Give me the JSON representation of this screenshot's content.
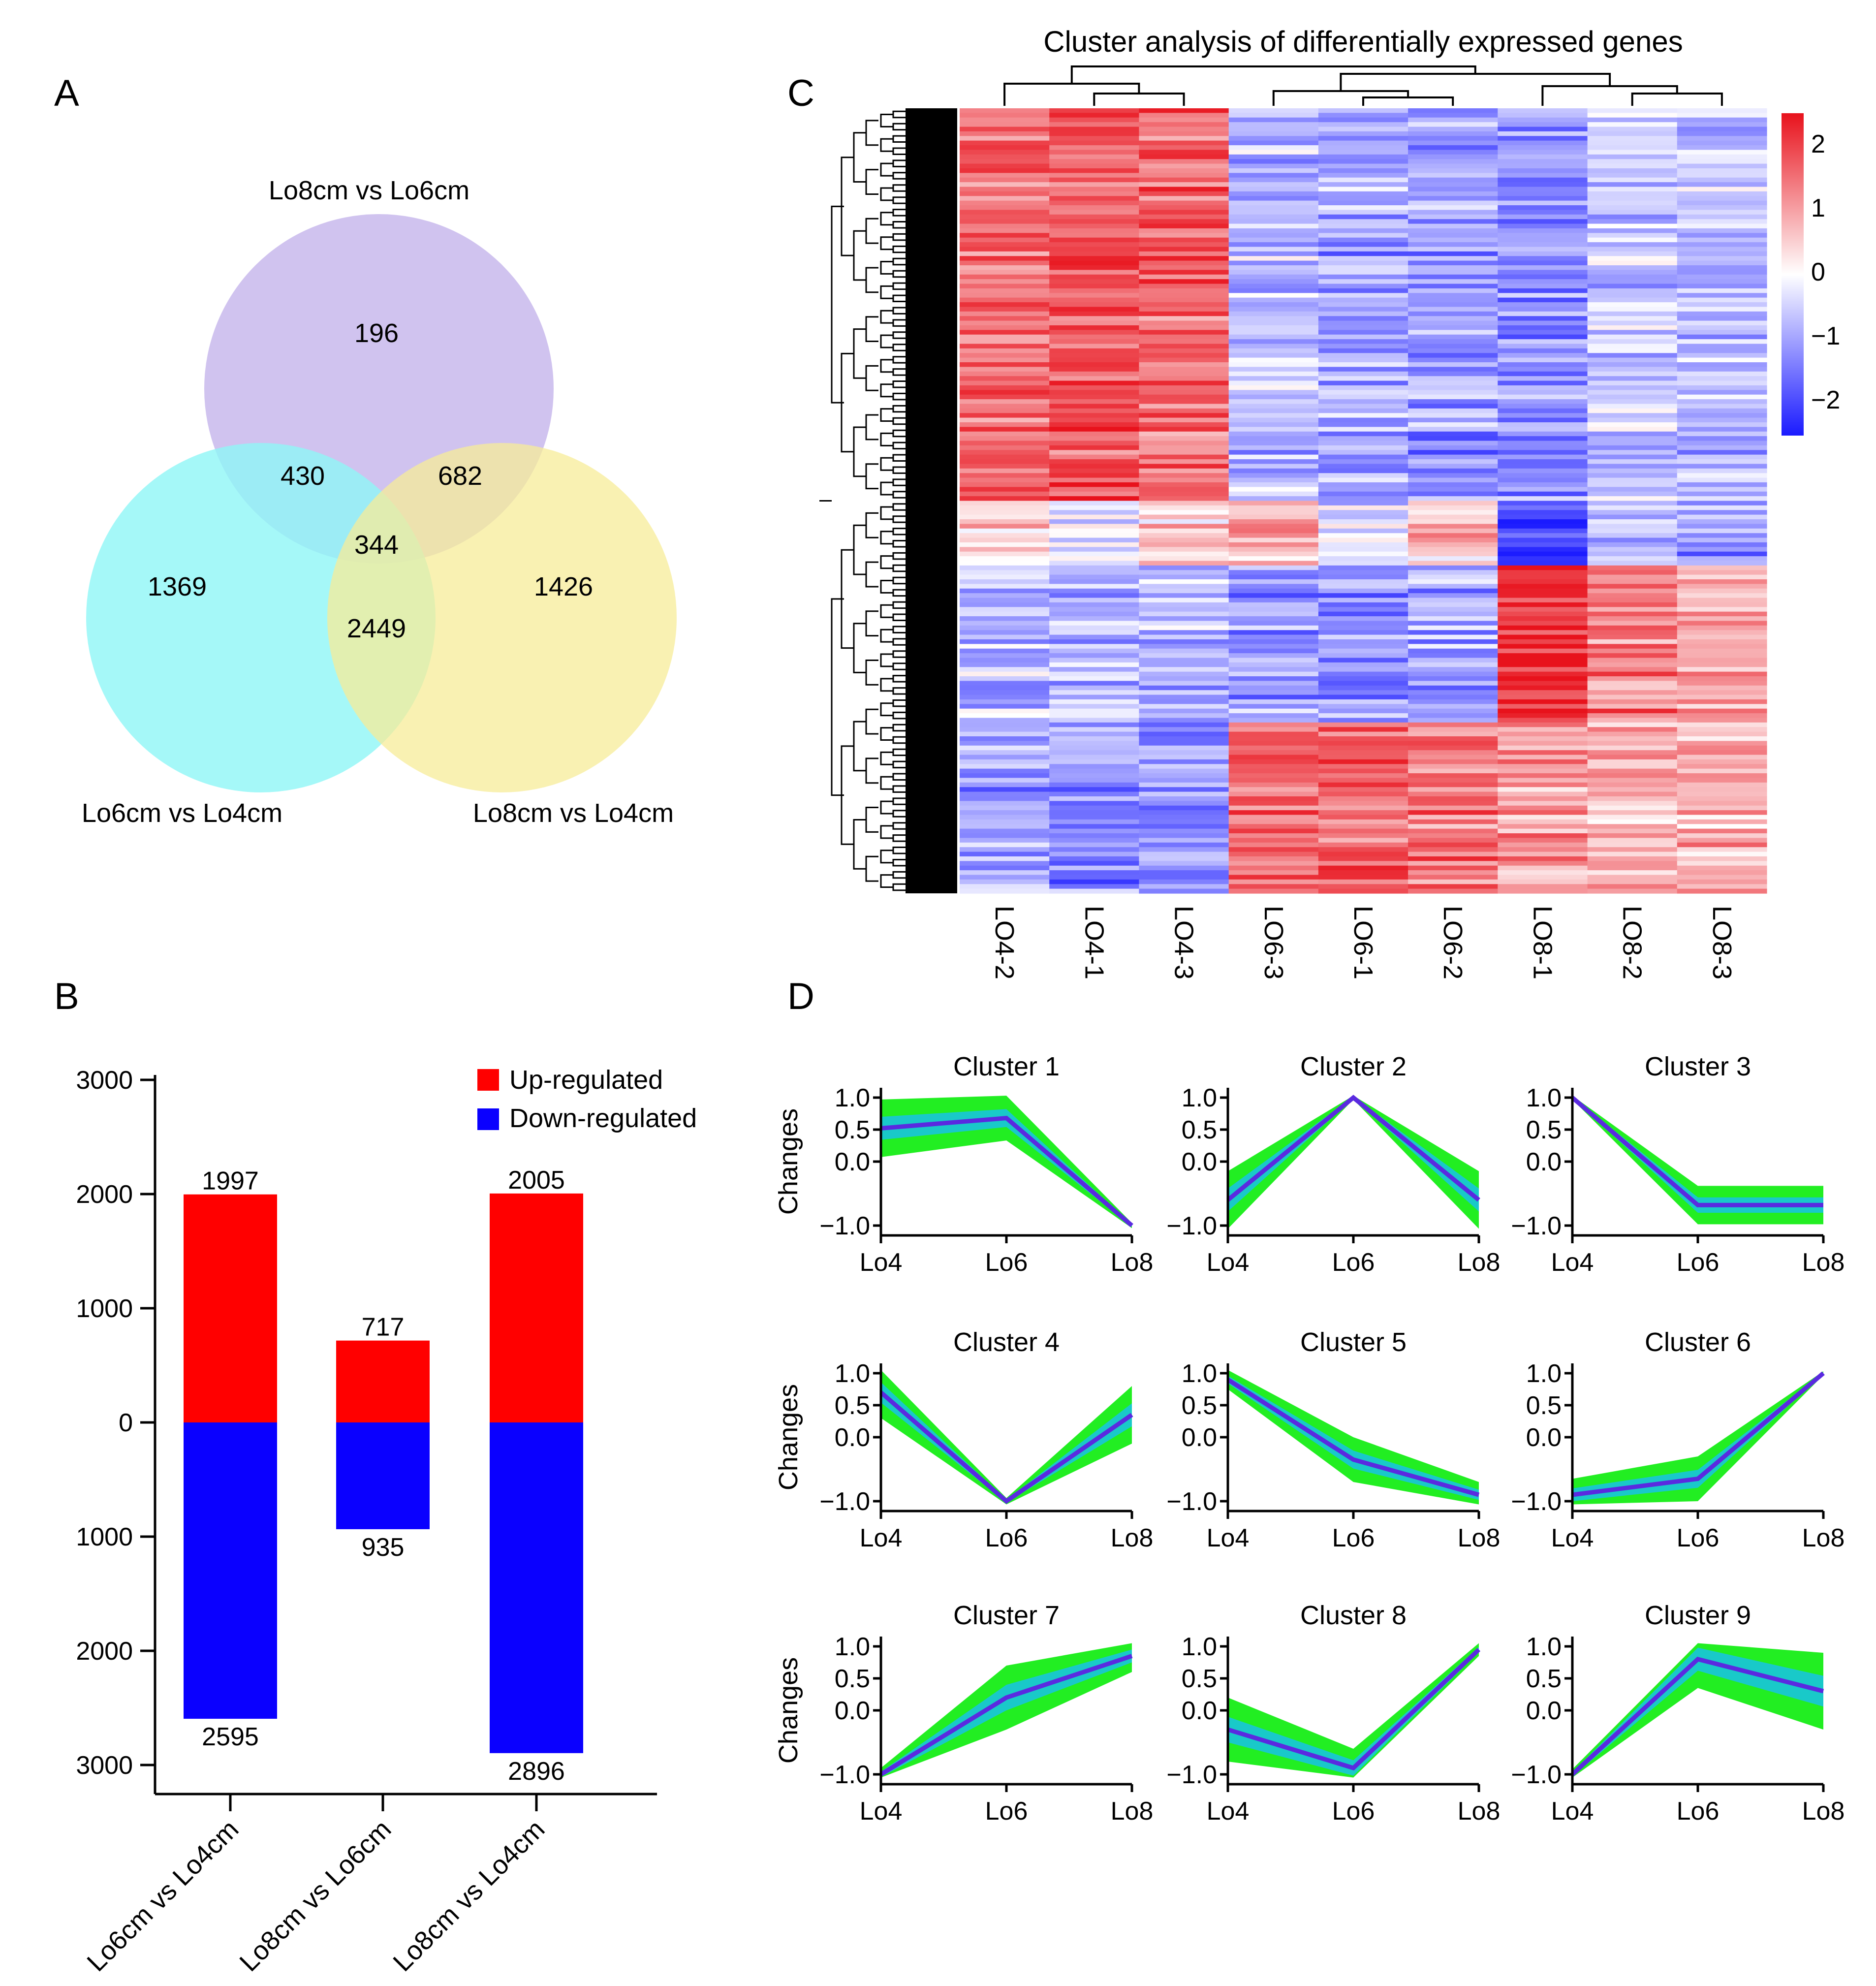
{
  "panels": {
    "a": "A",
    "b": "B",
    "c": "C",
    "d": "D"
  },
  "colors": {
    "venn_top": "#c8b8ec",
    "venn_left": "#8ef6f6",
    "venn_right": "#f7ec98",
    "up": "#ff0000",
    "down": "#0a00ff",
    "heat_high": "#e8121c",
    "heat_mid": "#ffffff",
    "heat_low": "#1a1aff",
    "cluster_band": "#22ee22",
    "cluster_mid": "#19c9c9",
    "cluster_center": "#5a2ae0"
  },
  "chart_data": [
    {
      "type": "venn",
      "sets": [
        "Lo8cm vs Lo6cm",
        "Lo6cm vs Lo4cm",
        "Lo8cm vs Lo4cm"
      ],
      "regions": {
        "only_top": "196",
        "only_left": "1369",
        "only_right": "1426",
        "top_left": "430",
        "top_right": "682",
        "left_right": "2449",
        "all": "344"
      }
    },
    {
      "type": "bar",
      "categories": [
        "Lo6cm vs Lo4cm",
        "Lo8cm vs Lo6cm",
        "Lo8cm vs Lo4cm"
      ],
      "series": [
        {
          "name": "Up-regulated",
          "values": [
            1997,
            717,
            2005
          ]
        },
        {
          "name": "Down-regulated",
          "values": [
            2595,
            935,
            2896
          ]
        }
      ],
      "ylim": [
        -3000,
        3000
      ],
      "yticks": [
        "3000",
        "2000",
        "1000",
        "0",
        "1000",
        "2000",
        "3000"
      ],
      "legend": "top-right",
      "stacked": "diverging"
    },
    {
      "type": "heatmap",
      "title": "Cluster analysis of differentially expressed genes",
      "columns": [
        "LO4-2",
        "LO4-1",
        "LO4-3",
        "LO6-3",
        "LO6-1",
        "LO6-2",
        "LO8-1",
        "LO8-2",
        "LO8-3"
      ],
      "colorbar_range": [
        -2,
        2
      ],
      "colorbar_ticks": [
        "2",
        "1",
        "0",
        "−1",
        "−2"
      ],
      "column_groups": [
        "LO4",
        "LO6",
        "LO8"
      ],
      "row_blocks": [
        {
          "rows": "upper",
          "pattern": [
            1.2,
            1.4,
            1.3,
            -0.6,
            -0.8,
            -0.9,
            -1.0,
            -0.5,
            -0.6
          ]
        },
        {
          "rows": "middle",
          "pattern": [
            0.3,
            -0.1,
            0.4,
            0.7,
            -0.3,
            0.5,
            -1.7,
            -0.6,
            -0.9
          ]
        },
        {
          "rows": "lower-a",
          "pattern": [
            -0.5,
            -0.6,
            -0.6,
            -0.9,
            -1.0,
            -0.8,
            1.6,
            1.1,
            0.8
          ]
        },
        {
          "rows": "lower-b",
          "pattern": [
            -0.8,
            -1.0,
            -0.9,
            1.2,
            1.3,
            1.1,
            0.8,
            0.6,
            0.7
          ]
        }
      ]
    },
    {
      "type": "line",
      "x": [
        "Lo4",
        "Lo6",
        "Lo8"
      ],
      "ylabel": "Changes",
      "ylim": [
        -1.0,
        1.0
      ],
      "yticks": [
        "1.0",
        "0.5",
        "0.0",
        "−1.0"
      ],
      "clusters": [
        {
          "name": "Cluster 1",
          "center": [
            0.52,
            0.68,
            -1.0
          ],
          "spread": [
            0.45,
            0.35,
            0.04
          ]
        },
        {
          "name": "Cluster 2",
          "center": [
            -0.6,
            1.0,
            -0.6
          ],
          "spread": [
            0.45,
            0.03,
            0.45
          ]
        },
        {
          "name": "Cluster 3",
          "center": [
            1.0,
            -0.68,
            -0.68
          ],
          "spread": [
            0.03,
            0.3,
            0.3
          ]
        },
        {
          "name": "Cluster 4",
          "center": [
            0.7,
            -1.0,
            0.35
          ],
          "spread": [
            0.4,
            0.05,
            0.45
          ]
        },
        {
          "name": "Cluster 5",
          "center": [
            0.9,
            -0.35,
            -0.9
          ],
          "spread": [
            0.15,
            0.35,
            0.2
          ]
        },
        {
          "name": "Cluster 6",
          "center": [
            -0.9,
            -0.65,
            1.0
          ],
          "spread": [
            0.25,
            0.35,
            0.03
          ]
        },
        {
          "name": "Cluster 7",
          "center": [
            -1.0,
            0.2,
            0.85
          ],
          "spread": [
            0.1,
            0.5,
            0.25
          ]
        },
        {
          "name": "Cluster 8",
          "center": [
            -0.3,
            -0.9,
            0.95
          ],
          "spread": [
            0.5,
            0.3,
            0.1
          ]
        },
        {
          "name": "Cluster 9",
          "center": [
            -1.0,
            0.8,
            0.3
          ],
          "spread": [
            0.08,
            0.45,
            0.6
          ]
        }
      ]
    }
  ]
}
